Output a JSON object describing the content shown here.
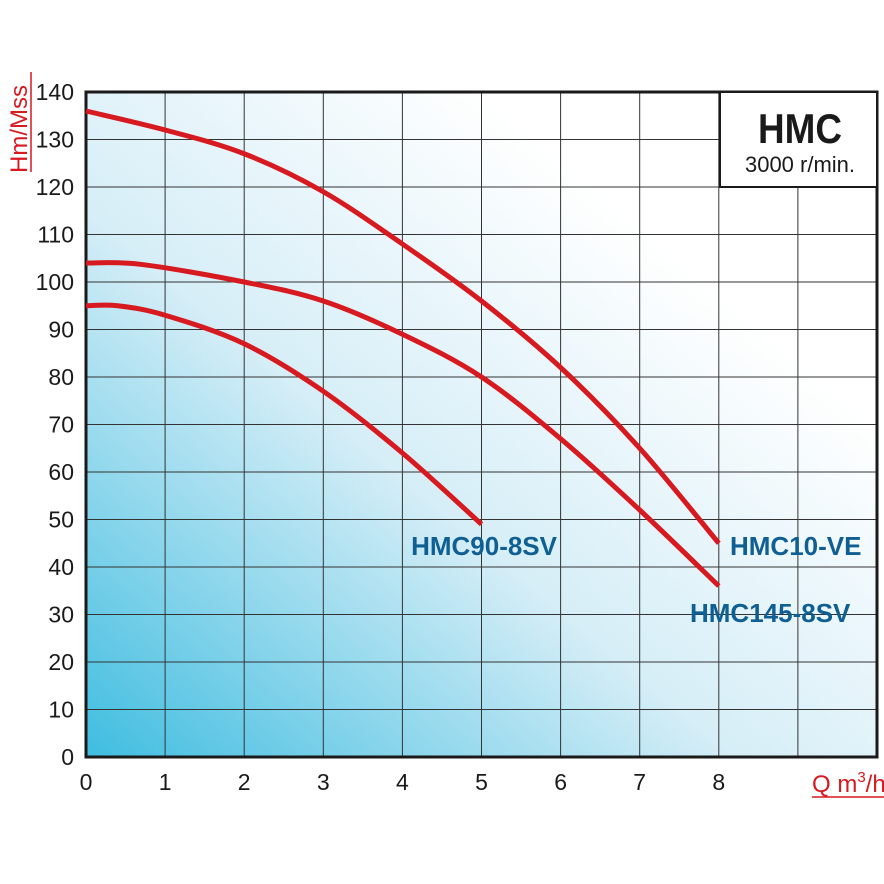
{
  "chart_data": {
    "type": "line",
    "title": "HMC",
    "subtitle": "3000 r/min.",
    "xlabel": "Q m³/h",
    "xlabel_main": "Q m",
    "xlabel_sup": "3",
    "xlabel_tail": "/h",
    "ylabel": "Hm/Mss",
    "xlim": [
      0,
      10
    ],
    "ylim": [
      0,
      140
    ],
    "xticks": [
      0,
      1,
      2,
      3,
      4,
      5,
      6,
      7,
      8
    ],
    "yticks": [
      0,
      10,
      20,
      30,
      40,
      50,
      60,
      70,
      80,
      90,
      100,
      110,
      120,
      130,
      140
    ],
    "grid": true,
    "line_color": "#d71920",
    "label_color": "#0f5f92",
    "series": [
      {
        "name": "HMC10-VE",
        "x": [
          0,
          1,
          2,
          3,
          4,
          5,
          6,
          7,
          8
        ],
        "y": [
          136,
          132,
          127,
          119,
          108,
          96,
          82,
          65,
          45
        ]
      },
      {
        "name": "HMC145-8SV",
        "x": [
          0,
          0.7,
          2,
          3,
          4,
          5,
          6,
          7,
          8
        ],
        "y": [
          104,
          103.7,
          100,
          96,
          89,
          80,
          67,
          52,
          36
        ]
      },
      {
        "name": "HMC90-8SV",
        "x": [
          0,
          0.4,
          1,
          2,
          3,
          4,
          5
        ],
        "y": [
          95,
          95,
          93,
          87,
          77,
          64,
          49
        ]
      }
    ]
  }
}
